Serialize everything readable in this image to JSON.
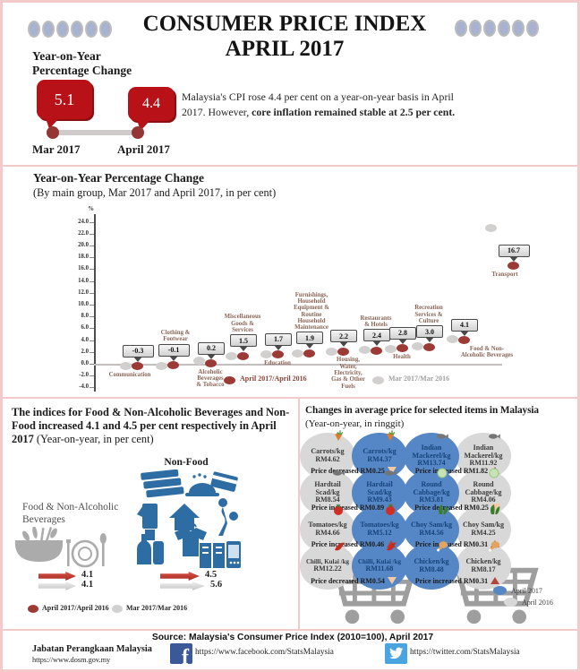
{
  "header": {
    "title_line1": "CONSUMER PRICE INDEX",
    "title_line2": "APRIL 2017",
    "yoy_heading_line1": "Year-on-Year",
    "yoy_heading_line2": "Percentage Change",
    "bubbles": [
      {
        "value": "5.1",
        "label": "Mar 2017"
      },
      {
        "value": "4.4",
        "label": "April 2017"
      }
    ],
    "summary_regular": "Malaysia's CPI rose 4.4 per cent on a year-on-year basis in April 2017. However, ",
    "summary_bold": "core inflation remained stable at 2.5 per cent.",
    "decor_oval_count": 6
  },
  "chart": {
    "title": "Year-on-Year Percentage Change",
    "subtitle": "(By main group, Mar 2017 and April 2017, in per cent)"
  },
  "chart_data": {
    "type": "scatter",
    "title": "Year-on-Year Percentage Change (By main group, Mar 2017 and April 2017, in per cent)",
    "ylabel": "%",
    "ylim": [
      -4.0,
      24.0
    ],
    "ytick_step": 2.0,
    "grid": false,
    "legend_position": "bottom",
    "series_names": [
      "April 2017/April 2016",
      "Mar 2017/Mar 2016"
    ],
    "points": [
      {
        "category": "Communication",
        "label_lines": [
          "Communication"
        ],
        "april": -0.3,
        "mar": -0.4
      },
      {
        "category": "Clothing & Footwear",
        "label_lines": [
          "Clothing &",
          "Footwear"
        ],
        "april": -0.1,
        "mar": -0.4
      },
      {
        "category": "Alcoholic Beverages & Tobacco",
        "label_lines": [
          "Alcoholic",
          "Beverages",
          "& Tobacco"
        ],
        "april": 0.2,
        "mar": 0.6
      },
      {
        "category": "Miscellaneous Goods & Services",
        "label_lines": [
          "Miscellaneous",
          "Goods &",
          "Services"
        ],
        "april": 1.5,
        "mar": 1.3
      },
      {
        "category": "Education",
        "label_lines": [
          "Education"
        ],
        "april": 1.7,
        "mar": 1.6
      },
      {
        "category": "Furnishings, Household Equipment & Routine Household Maintenance",
        "label_lines": [
          "Furnishings,",
          "Household",
          "Equipment &",
          "Routine",
          "Household",
          "Maintenance"
        ],
        "april": 1.9,
        "mar": 1.8
      },
      {
        "category": "Housing, Water, Electricity, Gas & Other Fuels",
        "label_lines": [
          "Housing,",
          "Water,",
          "Electricity,",
          "Gas & Other",
          "Fuels"
        ],
        "april": 2.2,
        "mar": 2.1
      },
      {
        "category": "Restaurants & Hotels",
        "label_lines": [
          "Restaurants",
          "& Hotels"
        ],
        "april": 2.4,
        "mar": 2.3
      },
      {
        "category": "Health",
        "label_lines": [
          "Health"
        ],
        "april": 2.8,
        "mar": 2.5
      },
      {
        "category": "Recreation Services & Culture",
        "label_lines": [
          "Recreation",
          "Services &",
          "Culture"
        ],
        "april": 3.0,
        "mar": 2.9
      },
      {
        "category": "Food & Non-Alcoholic Beverages",
        "label_lines": [
          "Food & Non-",
          "Alcoholic Beverages"
        ],
        "april": 4.1,
        "mar": 4.1
      },
      {
        "category": "Transport",
        "label_lines": [
          "Transport"
        ],
        "april": 16.7,
        "mar": 23.0
      }
    ]
  },
  "chart_legend": [
    {
      "label": "April 2017/April 2016",
      "color": "#9c3a36",
      "text_color": "#8d4438"
    },
    {
      "label": "Mar 2017/Mar 2016",
      "color": "#d2cfcf",
      "text_color": "#a0a0a0"
    }
  ],
  "food_panel": {
    "title_bold": "The indices for Food & Non-Alcoholic Beverages and Non-Food increased 4.1 and 4.5 per cent respectively in April 2017 ",
    "title_regular": "(Year-on-year, in per cent)",
    "non_food_label": "Non-Food",
    "food_label_line1": "Food & Non-Alcoholic",
    "food_label_line2": "Beverages",
    "food_april": "4.1",
    "food_mar": "4.1",
    "non_food_april": "4.5",
    "non_food_mar": "5.6",
    "legend": [
      {
        "label": "April 2017/April 2016",
        "color": "#9c3a36",
        "text_color": "#262626"
      },
      {
        "label": "Mar 2017/Mar 2016",
        "color": "#d2cfcf",
        "text_color": "#262626"
      }
    ]
  },
  "price_panel": {
    "title_bold": "Changes in average price for selected items in Malaysia",
    "title_regular": "(Year-on-year, in ringgit)",
    "items": [
      {
        "name_lines": [
          "Carrots/kg"
        ],
        "icon": "carrot",
        "price_2017": "RM4.37",
        "price_2016": "RM4.62",
        "blue_side": "right",
        "caption": "Price decreased RM0.25",
        "direction": "down"
      },
      {
        "name_lines": [
          "Indian",
          "Mackerel/kg"
        ],
        "icon": "fish",
        "price_2017": "RM13.74",
        "price_2016": "RM11.92",
        "blue_side": "left",
        "caption": "Price increased RM1.82",
        "direction": "up"
      },
      {
        "name_lines": [
          "Hardtail",
          "Scad/kg"
        ],
        "icon": "fish",
        "price_2017": "RM9.43",
        "price_2016": "RM8.54",
        "blue_side": "right",
        "caption": "Price increased RM0.89",
        "direction": "up"
      },
      {
        "name_lines": [
          "Round",
          "Cabbage/kg"
        ],
        "icon": "cabbage",
        "price_2017": "RM3.81",
        "price_2016": "RM4.06",
        "blue_side": "left",
        "caption": "Price decreased RM0.25",
        "direction": "down"
      },
      {
        "name_lines": [
          "Tomatoes/kg"
        ],
        "icon": "tomato",
        "price_2017": "RM5.12",
        "price_2016": "RM4.66",
        "blue_side": "right",
        "caption": "Price increased RM0.46",
        "direction": "up"
      },
      {
        "name_lines": [
          "Choy Sam/kg"
        ],
        "icon": "choysam",
        "price_2017": "RM4.56",
        "price_2016": "RM4.25",
        "blue_side": "left",
        "caption": "Price increased RM0.31",
        "direction": "up"
      },
      {
        "name_lines": [
          "Chilli, Kulai /kg"
        ],
        "icon": "chilli",
        "price_2017": "RM11.68",
        "price_2016": "RM12.22",
        "blue_side": "right",
        "caption": "Price decreased RM0.54",
        "direction": "down"
      },
      {
        "name_lines": [
          "Chicken/kg"
        ],
        "icon": "chicken",
        "price_2017": "RM8.48",
        "price_2016": "RM8.17",
        "blue_side": "left",
        "caption": "Price increased RM0.31",
        "direction": "up"
      }
    ],
    "legend": [
      {
        "label": "April 2017",
        "color": "#5586c5"
      },
      {
        "label": "April 2016",
        "color": "#d8d8d8"
      }
    ]
  },
  "footer": {
    "source": "Source: Malaysia's Consumer Price Index (2010=100), April 2017",
    "org_name": "Jabatan Perangkaan Malaysia",
    "org_url": "https://www.dosm.gov.my",
    "facebook_url": "https://www.facebook.com/StatsMalaysia",
    "twitter_url": "https://twitter.com/StatsMalaysia"
  }
}
